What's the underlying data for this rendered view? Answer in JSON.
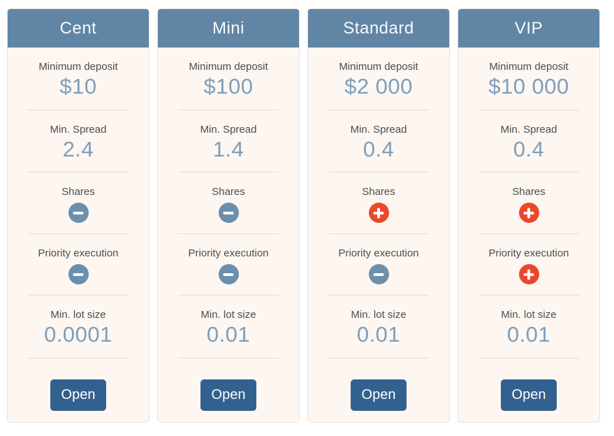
{
  "colors": {
    "header_bg": "#6185a5",
    "card_bg": "#fdf6f1",
    "value_text": "#7e9eba",
    "label_text": "#4d4d4d",
    "minus_icon_bg": "#6b8fac",
    "plus_icon_bg": "#e8492b",
    "open_button_bg": "#33618f"
  },
  "plans": [
    {
      "name": "Cent",
      "button_label": "Open",
      "features": [
        {
          "label": "Minimum deposit",
          "value": "$10"
        },
        {
          "label": "Min. Spread",
          "value": "2.4"
        },
        {
          "label": "Shares",
          "value": "minus"
        },
        {
          "label": "Priority execution",
          "value": "minus"
        },
        {
          "label": "Min. lot size",
          "value": "0.0001"
        }
      ]
    },
    {
      "name": "Mini",
      "button_label": "Open",
      "features": [
        {
          "label": "Minimum deposit",
          "value": "$100"
        },
        {
          "label": "Min. Spread",
          "value": "1.4"
        },
        {
          "label": "Shares",
          "value": "minus"
        },
        {
          "label": "Priority execution",
          "value": "minus"
        },
        {
          "label": "Min. lot size",
          "value": "0.01"
        }
      ]
    },
    {
      "name": "Standard",
      "button_label": "Open",
      "features": [
        {
          "label": "Minimum deposit",
          "value": "$2 000"
        },
        {
          "label": "Min. Spread",
          "value": "0.4"
        },
        {
          "label": "Shares",
          "value": "plus"
        },
        {
          "label": "Priority execution",
          "value": "minus"
        },
        {
          "label": "Min. lot size",
          "value": "0.01"
        }
      ]
    },
    {
      "name": "VIP",
      "button_label": "Open",
      "features": [
        {
          "label": "Minimum deposit",
          "value": "$10 000"
        },
        {
          "label": "Min. Spread",
          "value": "0.4"
        },
        {
          "label": "Shares",
          "value": "plus"
        },
        {
          "label": "Priority execution",
          "value": "plus"
        },
        {
          "label": "Min. lot size",
          "value": "0.01"
        }
      ]
    }
  ]
}
